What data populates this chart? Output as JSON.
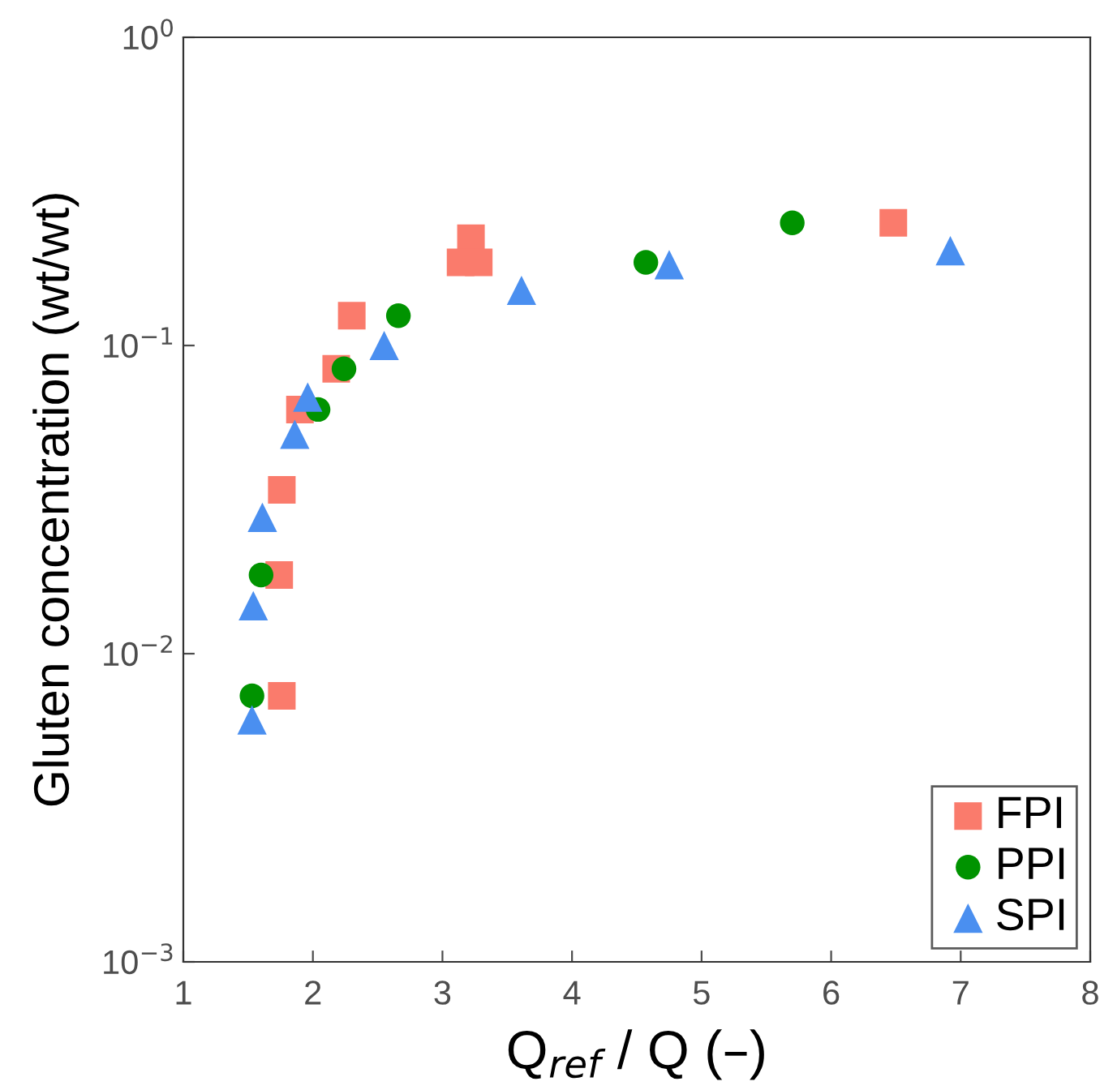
{
  "chart_data": {
    "type": "scatter",
    "xlabel": "Q$_{ref}$ / Q (–)",
    "ylabel": "Gluten concentration (wt/wt)",
    "xlim": [
      1,
      8
    ],
    "xticks": [
      1,
      2,
      3,
      4,
      5,
      6,
      7,
      8
    ],
    "ylim": [
      0.001,
      1
    ],
    "yticks": [
      {
        "value": 0.001,
        "label": "10$^{−3}$"
      },
      {
        "value": 0.01,
        "label": "10$^{−2}$"
      },
      {
        "value": 0.1,
        "label": "10$^{−1}$"
      },
      {
        "value": 1,
        "label": "10$^{0}$"
      }
    ],
    "log": "y",
    "grid": false,
    "legend": "bottom right",
    "series": [
      {
        "name": "FPI",
        "color": "#fa7b6c",
        "marker": "square",
        "x": [
          1.76,
          1.74,
          1.76,
          1.9,
          2.18,
          2.3,
          3.22,
          3.14,
          3.28,
          6.48
        ],
        "values": [
          0.0073,
          0.018,
          0.034,
          0.062,
          0.084,
          0.125,
          0.223,
          0.186,
          0.186,
          0.25
        ]
      },
      {
        "name": "PPI",
        "color": "#009300",
        "marker": "circle",
        "x": [
          1.53,
          1.6,
          2.04,
          2.24,
          2.66,
          4.57,
          5.7
        ],
        "values": [
          0.0073,
          0.018,
          0.062,
          0.084,
          0.125,
          0.186,
          0.25
        ]
      },
      {
        "name": "SPI",
        "color": "#4a8ff0",
        "marker": "triangle",
        "x": [
          1.53,
          1.54,
          1.61,
          1.86,
          1.96,
          2.55,
          3.61,
          4.75,
          6.92
        ],
        "values": [
          0.0061,
          0.0143,
          0.0277,
          0.0515,
          0.068,
          0.1,
          0.151,
          0.183,
          0.203
        ]
      }
    ]
  }
}
